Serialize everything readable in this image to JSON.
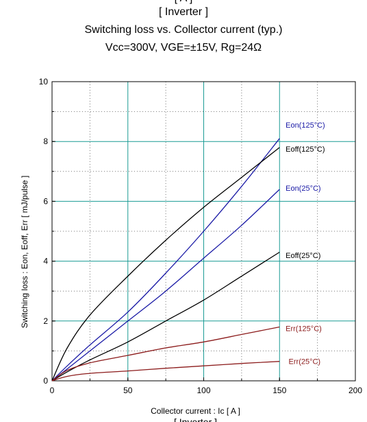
{
  "titles": {
    "top_cut": "[ A ]",
    "module": "[ Inverter ]",
    "main": "Switching loss  vs.  Collector current  (typ.)",
    "conditions": "Vcc=300V, VGE=±15V, Rg=24Ω",
    "bottom_cut": "[ Inverter ]"
  },
  "chart_data": {
    "type": "line",
    "xlabel": "Collector current  :  Ic  [ A ]",
    "ylabel": "Switching loss  :  Eon, Eoff, Err  [ mJ/pulse ]",
    "xlim": [
      0,
      200
    ],
    "ylim": [
      0,
      10
    ],
    "x_ticks": [
      0,
      50,
      100,
      150,
      200
    ],
    "y_ticks": [
      0,
      2,
      4,
      6,
      8,
      10
    ],
    "x_minor_step": 25,
    "y_minor_step": 1,
    "grid": true,
    "series": [
      {
        "name": "Eon(125°C)",
        "color": "#1a1aa6",
        "x": [
          0,
          10,
          25,
          50,
          75,
          100,
          125,
          150
        ],
        "y": [
          0,
          0.5,
          1.2,
          2.3,
          3.6,
          5.0,
          6.5,
          8.1
        ],
        "label_at": [
          154,
          8.55
        ]
      },
      {
        "name": "Eoff(125°C)",
        "color": "#000000",
        "x": [
          0,
          10,
          25,
          50,
          75,
          100,
          125,
          150
        ],
        "y": [
          0,
          1.1,
          2.2,
          3.5,
          4.7,
          5.8,
          6.8,
          7.8
        ],
        "label_at": [
          154,
          7.75
        ]
      },
      {
        "name": "Eon(25°C)",
        "color": "#1a1aa6",
        "x": [
          0,
          10,
          25,
          50,
          75,
          100,
          125,
          150
        ],
        "y": [
          0,
          0.4,
          1.0,
          2.0,
          3.0,
          4.1,
          5.2,
          6.4
        ],
        "label_at": [
          154,
          6.45
        ]
      },
      {
        "name": "Eoff(25°C)",
        "color": "#000000",
        "x": [
          0,
          10,
          25,
          50,
          75,
          100,
          125,
          150
        ],
        "y": [
          0,
          0.3,
          0.7,
          1.3,
          2.0,
          2.7,
          3.5,
          4.3
        ],
        "label_at": [
          154,
          4.2
        ]
      },
      {
        "name": "Err(125°C)",
        "color": "#8b1a1a",
        "x": [
          0,
          10,
          25,
          50,
          75,
          100,
          125,
          150
        ],
        "y": [
          0,
          0.35,
          0.6,
          0.85,
          1.1,
          1.3,
          1.55,
          1.8
        ],
        "label_at": [
          154,
          1.75
        ]
      },
      {
        "name": "Err(25°C)",
        "color": "#8b1a1a",
        "x": [
          0,
          10,
          25,
          50,
          75,
          100,
          125,
          150
        ],
        "y": [
          0,
          0.15,
          0.25,
          0.33,
          0.42,
          0.5,
          0.58,
          0.65
        ],
        "label_at": [
          156,
          0.65
        ]
      }
    ]
  }
}
